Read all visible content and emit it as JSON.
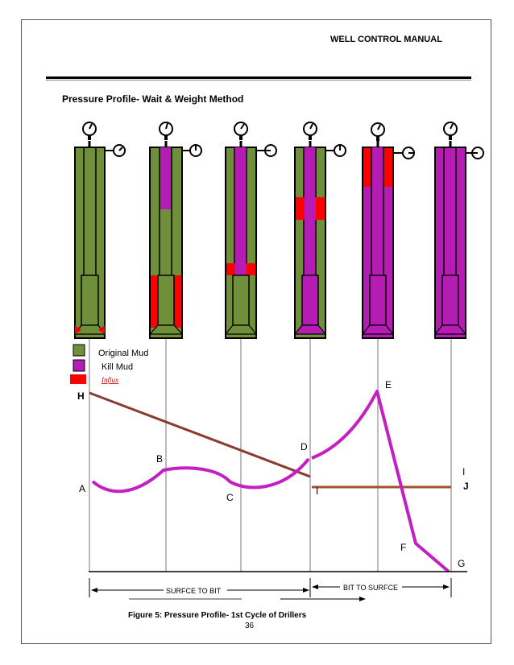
{
  "header": {
    "title": "WELL CONTROL MANUAL"
  },
  "section_title": "Pressure Profile- Wait & Weight Method",
  "legend": {
    "items": [
      {
        "label": "Original Mud",
        "color": "#6f8f3a"
      },
      {
        "label": "Kill Mud",
        "color": "#b41cb4"
      },
      {
        "label": "",
        "color": "#ff0000",
        "stamp_text": "Influx"
      }
    ]
  },
  "colors": {
    "original_mud": "#6f8f3a",
    "kill_mud": "#b41cb4",
    "influx": "#ff0000",
    "drill_pipe_curve": "#c31fc3",
    "h_line": "#8b3a2f",
    "i_line": "#a0522d"
  },
  "points": {
    "A": "A",
    "B": "B",
    "C": "C",
    "D": "D",
    "E": "E",
    "F": "F",
    "G": "G",
    "H": "H",
    "I": "I",
    "J": "J"
  },
  "axis": {
    "left_label": "SURFCE TO BIT",
    "right_label": "BIT  TO SURFCE"
  },
  "caption": "Figure 5: Pressure Profile- 1st Cycle of Drillers",
  "page_number": "36"
}
